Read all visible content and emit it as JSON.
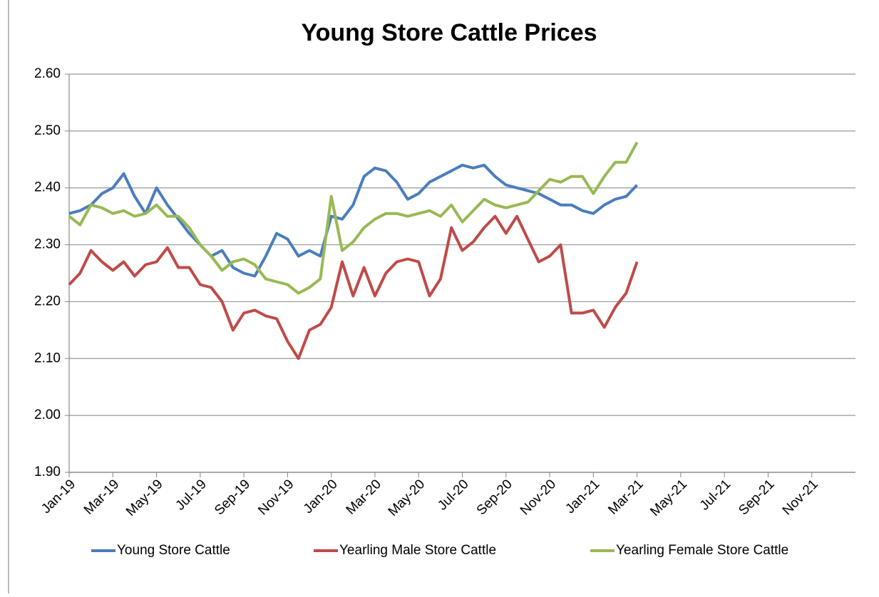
{
  "chart_data": {
    "type": "line",
    "title": "Young Store Cattle Prices",
    "x": [
      0,
      0.5,
      1,
      1.5,
      2,
      2.5,
      3,
      3.5,
      4,
      4.5,
      5,
      5.5,
      6,
      6.5,
      7,
      7.5,
      8,
      8.5,
      9,
      9.5,
      10,
      10.5,
      11,
      11.5,
      12,
      12.5,
      13,
      13.5,
      14,
      14.5,
      15,
      15.5,
      16,
      16.5,
      17,
      17.5,
      18,
      18.5,
      19,
      19.5,
      20,
      20.5,
      21,
      21.5,
      22,
      22.5,
      23,
      23.5,
      24,
      24.5,
      25,
      25.5,
      26
    ],
    "xlim": [
      0,
      36
    ],
    "xticks": [
      {
        "value": 0,
        "label": "Jan-19"
      },
      {
        "value": 2,
        "label": "Mar-19"
      },
      {
        "value": 4,
        "label": "May-19"
      },
      {
        "value": 6,
        "label": "Jul-19"
      },
      {
        "value": 8,
        "label": "Sep-19"
      },
      {
        "value": 10,
        "label": "Nov-19"
      },
      {
        "value": 12,
        "label": "Jan-20"
      },
      {
        "value": 14,
        "label": "Mar-20"
      },
      {
        "value": 16,
        "label": "May-20"
      },
      {
        "value": 18,
        "label": "Jul-20"
      },
      {
        "value": 20,
        "label": "Sep-20"
      },
      {
        "value": 22,
        "label": "Nov-20"
      },
      {
        "value": 24,
        "label": "Jan-21"
      },
      {
        "value": 26,
        "label": "Mar-21"
      },
      {
        "value": 28,
        "label": "May-21"
      },
      {
        "value": 30,
        "label": "Jul-21"
      },
      {
        "value": 32,
        "label": "Sep-21"
      },
      {
        "value": 34,
        "label": "Nov-21"
      }
    ],
    "ylim": [
      1.9,
      2.6
    ],
    "yticks": [
      {
        "value": 1.9,
        "label": "1.90"
      },
      {
        "value": 2.0,
        "label": "2.00"
      },
      {
        "value": 2.1,
        "label": "2.10"
      },
      {
        "value": 2.2,
        "label": "2.20"
      },
      {
        "value": 2.3,
        "label": "2.30"
      },
      {
        "value": 2.4,
        "label": "2.40"
      },
      {
        "value": 2.5,
        "label": "2.50"
      },
      {
        "value": 2.6,
        "label": "2.60"
      }
    ],
    "grid": true,
    "legend": "bottom",
    "series": [
      {
        "name": "Young Store Cattle",
        "color": "#4a7ebb",
        "values": [
          2.355,
          2.36,
          2.37,
          2.39,
          2.4,
          2.425,
          2.385,
          2.355,
          2.4,
          2.37,
          2.345,
          2.32,
          2.3,
          2.28,
          2.29,
          2.26,
          2.25,
          2.245,
          2.28,
          2.32,
          2.31,
          2.28,
          2.29,
          2.28,
          2.35,
          2.345,
          2.37,
          2.42,
          2.435,
          2.43,
          2.41,
          2.38,
          2.39,
          2.41,
          2.42,
          2.43,
          2.44,
          2.435,
          2.44,
          2.42,
          2.405,
          2.4,
          2.395,
          2.39,
          2.38,
          2.37,
          2.37,
          2.36,
          2.355,
          2.37,
          2.38,
          2.385,
          2.405
        ]
      },
      {
        "name": "Yearling Male Store Cattle",
        "color": "#be4b48",
        "values": [
          2.23,
          2.25,
          2.29,
          2.27,
          2.255,
          2.27,
          2.245,
          2.265,
          2.27,
          2.295,
          2.26,
          2.26,
          2.23,
          2.225,
          2.2,
          2.15,
          2.18,
          2.185,
          2.175,
          2.17,
          2.13,
          2.1,
          2.15,
          2.16,
          2.19,
          2.27,
          2.21,
          2.26,
          2.21,
          2.25,
          2.27,
          2.275,
          2.27,
          2.21,
          2.24,
          2.33,
          2.29,
          2.305,
          2.33,
          2.35,
          2.32,
          2.35,
          2.31,
          2.27,
          2.28,
          2.3,
          2.18,
          2.18,
          2.185,
          2.155,
          2.19,
          2.215,
          2.27
        ]
      },
      {
        "name": "Yearling Female Store Cattle",
        "color": "#98b954",
        "values": [
          2.35,
          2.335,
          2.37,
          2.365,
          2.355,
          2.36,
          2.35,
          2.355,
          2.37,
          2.35,
          2.35,
          2.33,
          2.3,
          2.28,
          2.255,
          2.27,
          2.275,
          2.265,
          2.24,
          2.235,
          2.23,
          2.215,
          2.225,
          2.24,
          2.385,
          2.29,
          2.305,
          2.33,
          2.345,
          2.355,
          2.355,
          2.35,
          2.355,
          2.36,
          2.35,
          2.37,
          2.34,
          2.36,
          2.38,
          2.37,
          2.365,
          2.37,
          2.375,
          2.395,
          2.415,
          2.41,
          2.42,
          2.42,
          2.39,
          2.42,
          2.445,
          2.445,
          2.48
        ]
      }
    ]
  }
}
